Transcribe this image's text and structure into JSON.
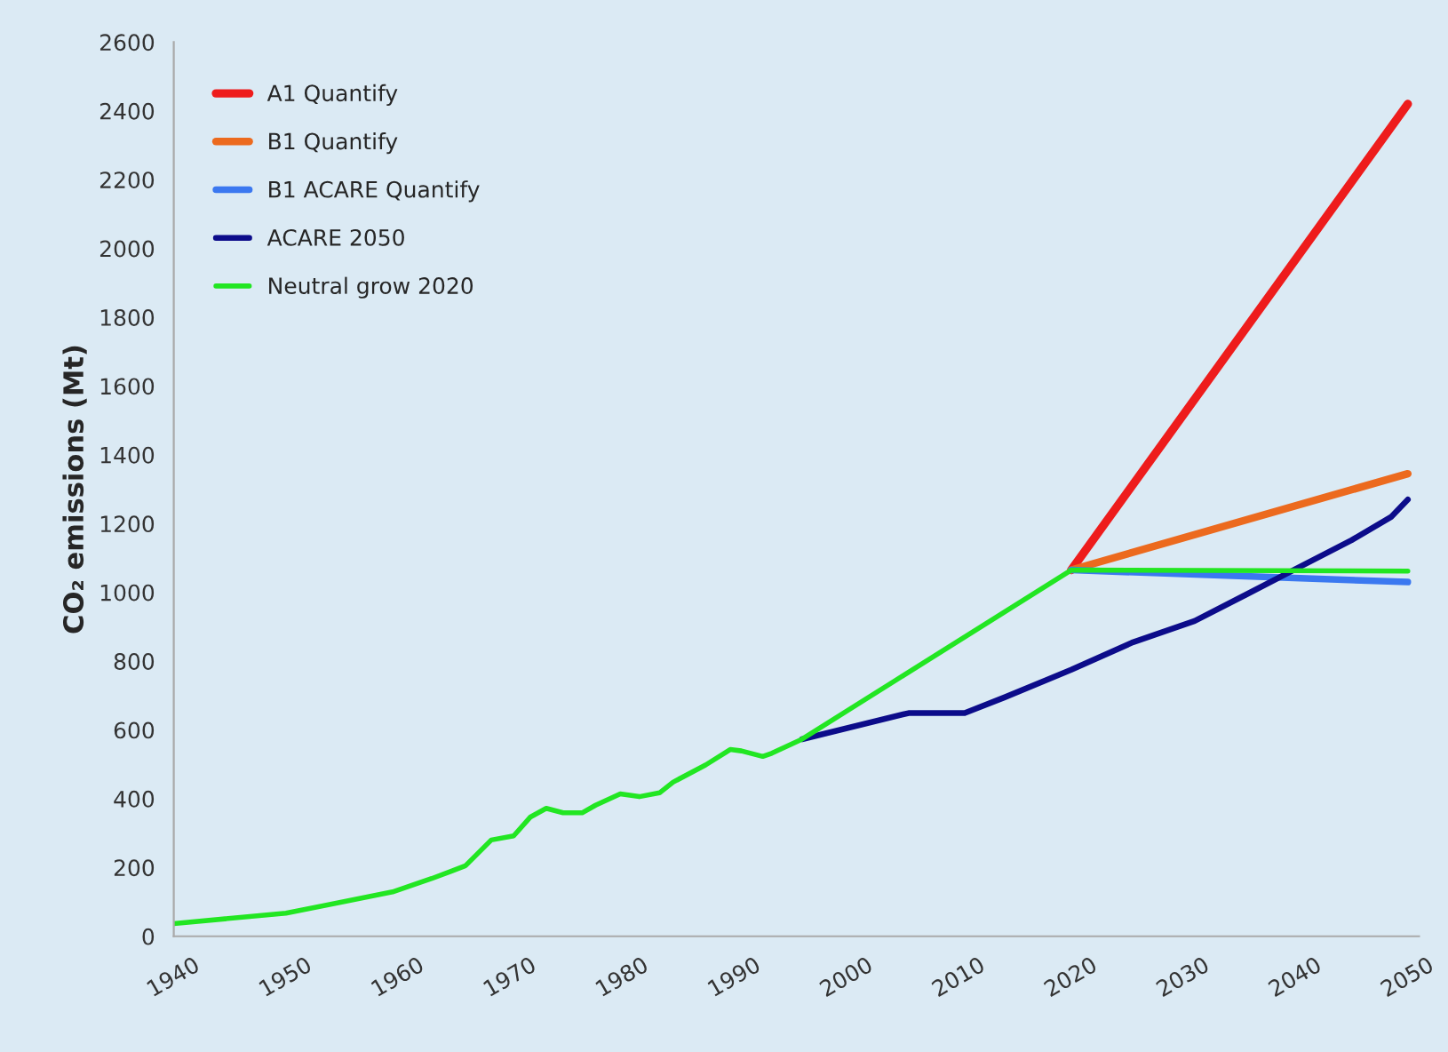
{
  "chart_data": {
    "type": "line",
    "ylabel": "CO₂ emissions (Mt)",
    "xlim": [
      1940,
      2051
    ],
    "xticks": [
      1940,
      1950,
      1960,
      1970,
      1980,
      1990,
      2000,
      2010,
      2020,
      2030,
      2040,
      2050
    ],
    "ylim": [
      0,
      2600
    ],
    "yticks": [
      0,
      200,
      400,
      600,
      800,
      1000,
      1200,
      1400,
      1600,
      1800,
      2000,
      2200,
      2400,
      2600
    ],
    "grid": false,
    "legend": "top left",
    "marker": "none",
    "line_style": "solid",
    "series": [
      {
        "name": "A1 Quantify",
        "color": "#ee1c1c",
        "x": [
          2020,
          2050
        ],
        "values": [
          1065,
          2420
        ]
      },
      {
        "name": "B1 Quantify",
        "color": "#ec6a1e",
        "x": [
          2020,
          2050
        ],
        "values": [
          1065,
          1345
        ]
      },
      {
        "name": "B1 ACARE Quantify",
        "color": "#3b78f0",
        "x": [
          2020,
          2050
        ],
        "values": [
          1065,
          1030
        ]
      },
      {
        "name": "ACARE 2050",
        "color": "#0c0c8a",
        "x": [
          1996,
          2005.5,
          2010.5,
          2014,
          2020,
          2025.5,
          2031,
          2035.5,
          2040,
          2045,
          2048.5,
          2050
        ],
        "values": [
          573,
          649,
          649,
          694,
          775,
          855,
          917,
          992,
          1068,
          1152,
          1219,
          1270
        ]
      },
      {
        "name": "Neutral grow 2020",
        "color": "#22e622",
        "x": [
          1940,
          1950,
          1959.5,
          1963,
          1966,
          1968.3,
          1970.3,
          1971.8,
          1973.2,
          1974.7,
          1976.4,
          1977.6,
          1979.8,
          1981.5,
          1983.3,
          1984.5,
          1987.4,
          1989.6,
          1990.6,
          1992.5,
          1993.3,
          1996,
          2020,
          2050
        ],
        "values": [
          37,
          67,
          129,
          168,
          205,
          280,
          292,
          347,
          372,
          359,
          359,
          381,
          414,
          406,
          417,
          448,
          498,
          543,
          539,
          523,
          532,
          573,
          1065,
          1062
        ]
      }
    ]
  }
}
